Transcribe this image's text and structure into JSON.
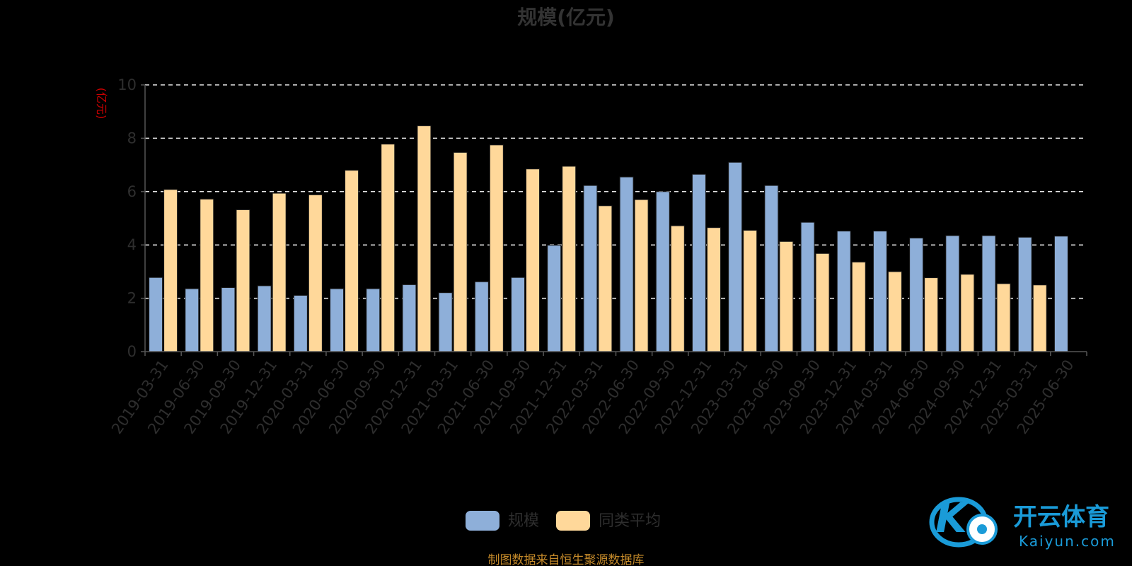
{
  "chart_data": {
    "type": "bar",
    "title": "规模(亿元)",
    "ylabel": "(亿元)",
    "ylim": [
      0,
      10
    ],
    "yticks": [
      0,
      2,
      4,
      6,
      8,
      10
    ],
    "grid": true,
    "legend_position": "bottom-center",
    "categories": [
      "2019-03-31",
      "2019-06-30",
      "2019-09-30",
      "2019-12-31",
      "2020-03-31",
      "2020-06-30",
      "2020-09-30",
      "2020-12-31",
      "2021-03-31",
      "2021-06-30",
      "2021-09-30",
      "2021-12-31",
      "2022-03-31",
      "2022-06-30",
      "2022-09-30",
      "2022-12-31",
      "2023-03-31",
      "2023-06-30",
      "2023-09-30",
      "2023-12-31",
      "2024-03-31",
      "2024-06-30",
      "2024-09-30",
      "2024-12-31",
      "2025-03-31",
      "2025-06-30"
    ],
    "series": [
      {
        "name": "规模",
        "color": "#8eafd9",
        "values": [
          2.78,
          2.36,
          2.4,
          2.47,
          2.11,
          2.36,
          2.36,
          2.51,
          2.21,
          2.62,
          2.78,
          3.99,
          6.23,
          6.55,
          6.0,
          6.65,
          7.1,
          6.23,
          4.85,
          4.52,
          4.52,
          4.26,
          4.35,
          4.35,
          4.29,
          4.33
        ]
      },
      {
        "name": "同类平均",
        "color": "#ffd89a",
        "values": [
          6.08,
          5.72,
          5.32,
          5.94,
          5.88,
          6.8,
          7.78,
          8.47,
          7.47,
          7.75,
          6.85,
          6.95,
          5.47,
          5.7,
          4.72,
          4.65,
          4.55,
          4.13,
          3.68,
          3.36,
          3.0,
          2.77,
          2.9,
          2.55,
          2.5,
          null
        ]
      }
    ]
  },
  "source_note": "制图数据来自恒生聚源数据库",
  "watermark": {
    "logo_main": "开云体育",
    "logo_sub": "Kaiyun.com",
    "logo_letter": "K",
    "color": "#1a9bd8"
  }
}
